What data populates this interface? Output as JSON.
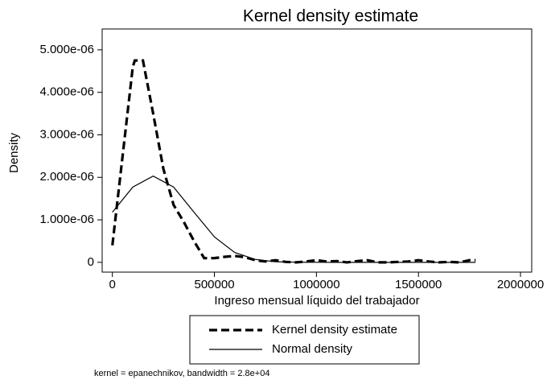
{
  "chart_data": {
    "type": "line",
    "title": "Kernel density estimate",
    "x_label": "Ingreso mensual líquido del trabajador",
    "y_label": "Density",
    "note": "kernel = epanechnikov, bandwidth =  2.8e+04",
    "xlim": [
      -50000,
      2055000
    ],
    "ylim": [
      -2.3e-07,
      5.49e-06
    ],
    "xticks": [
      0,
      500000,
      1000000,
      1500000,
      2000000
    ],
    "yticks": [
      0,
      {
        "value": 1e-06,
        "label": "1.000e-06"
      },
      {
        "value": 2e-06,
        "label": "2.000e-06"
      },
      {
        "value": 3e-06,
        "label": "3.000e-06"
      },
      {
        "value": 4e-06,
        "label": "4.000e-06"
      },
      {
        "value": 5e-06,
        "label": "5.000e-06"
      }
    ],
    "series": [
      {
        "name": "Kernel density estimate",
        "color": "#000000",
        "dashed": true,
        "x": [
          0,
          50000,
          100000,
          110000,
          150000,
          200000,
          250000,
          300000,
          350000,
          400000,
          450000,
          500000,
          550000,
          600000,
          650000,
          700000,
          750000,
          800000,
          850000,
          900000,
          950000,
          1000000,
          1050000,
          1100000,
          1150000,
          1200000,
          1250000,
          1300000,
          1350000,
          1400000,
          1450000,
          1500000,
          1550000,
          1600000,
          1650000,
          1700000,
          1750000,
          1780000
        ],
        "values": [
          4e-07,
          2.5e-06,
          4.6e-06,
          4.75e-06,
          4.75e-06,
          3.5e-06,
          2.2e-06,
          1.35e-06,
          9.5e-07,
          5e-07,
          1e-07,
          1e-07,
          1.3e-07,
          1.5e-07,
          1.2e-07,
          5e-08,
          2e-08,
          5e-08,
          1e-08,
          0,
          2e-08,
          5e-08,
          2e-08,
          3e-08,
          0,
          3e-08,
          5e-08,
          0,
          0,
          1e-08,
          2e-08,
          5e-08,
          2e-08,
          0,
          1e-08,
          0,
          5e-08,
          5e-08
        ]
      },
      {
        "name": "Normal density",
        "color": "#000000",
        "dashed": false,
        "x": [
          0,
          100000,
          200000,
          300000,
          400000,
          500000,
          600000,
          700000,
          800000,
          900000,
          1000000,
          1100000,
          1200000,
          1300000,
          1400000,
          1500000,
          1600000,
          1700000,
          1780000
        ],
        "values": [
          1.18e-06,
          1.77e-06,
          2.03e-06,
          1.77e-06,
          1.18e-06,
          6e-07,
          2.3e-07,
          6.9e-08,
          1.5e-08,
          2.5e-09,
          3e-10,
          0,
          0,
          0,
          0,
          0,
          0,
          0,
          0
        ]
      }
    ]
  }
}
